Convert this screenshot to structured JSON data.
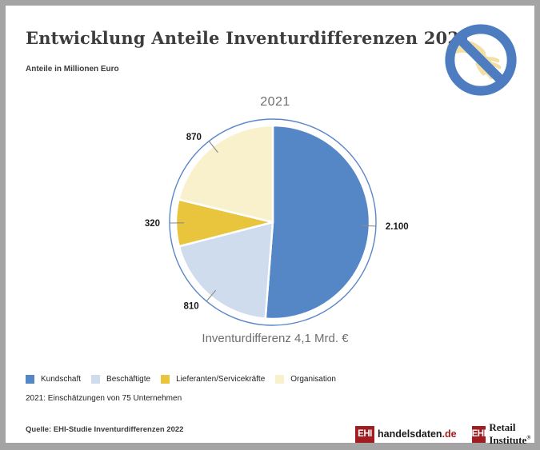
{
  "header": {
    "title": "Entwicklung Anteile Inventurdifferenzen 2021",
    "subtitle": "Anteile in Millionen Euro"
  },
  "icons": {
    "no_theft": "no-theft-hand-icon"
  },
  "colors": {
    "kundschaft_blue": "#5586c6",
    "beschaeftigte_lightblue": "#cfdcee",
    "lieferanten_gold": "#e9c53e",
    "organisation_paleyellow": "#f9f0cc",
    "ring_blue": "#5b87c9",
    "ehi_red": "#a01d22"
  },
  "chart_data": {
    "type": "pie",
    "title": "2021",
    "unit_note": "Anteile in Millionen Euro",
    "categories": [
      "Kundschaft",
      "Beschäftigte",
      "Lieferanten/Servicekräfte",
      "Organisation"
    ],
    "values": [
      2100,
      810,
      320,
      870
    ],
    "value_labels": [
      "2.100",
      "810",
      "320",
      "870"
    ],
    "colors": [
      "#5586c6",
      "#cfdcee",
      "#e9c53e",
      "#f9f0cc"
    ],
    "total": 4100,
    "start_angle_deg": 0,
    "direction": "clockwise",
    "caption": "Inventurdifferenz 4,1 Mrd. €",
    "legend_position": "bottom"
  },
  "legend": {
    "items": [
      {
        "label": "Kundschaft",
        "color": "#5586c6"
      },
      {
        "label": "Beschäftigte",
        "color": "#cfdcee"
      },
      {
        "label": "Lieferanten/Servicekräfte",
        "color": "#e9c53e"
      },
      {
        "label": "Organisation",
        "color": "#f9f0cc"
      }
    ]
  },
  "note": "2021: Einschätzungen von 75 Unternehmen",
  "footer": {
    "source": "Quelle: EHI-Studie Inventurdifferenzen 2022",
    "logos": [
      {
        "box": "EHI",
        "text": "handelsdaten",
        "suffix": ".de"
      },
      {
        "box": "EHI",
        "text": "Retail Institute",
        "reg": "®"
      }
    ]
  }
}
